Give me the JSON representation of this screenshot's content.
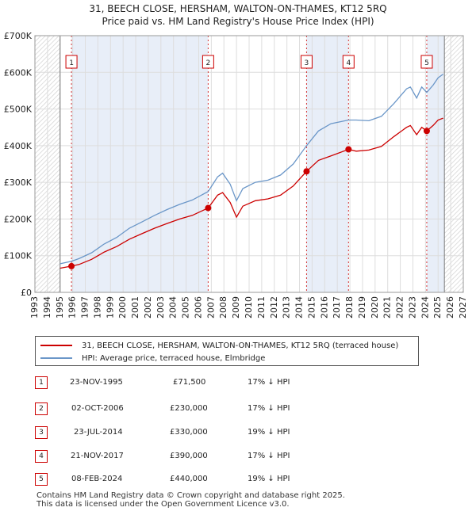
{
  "title": "31, BEECH CLOSE, HERSHAM, WALTON-ON-THAMES, KT12 5RQ",
  "subtitle": "Price paid vs. HM Land Registry's House Price Index (HPI)",
  "colors": {
    "property": "#cc0000",
    "hpi": "#6a96c8",
    "sale_marker": "#cc0000",
    "shade": "#e8eef8",
    "future_hatch": "#d4d4d4"
  },
  "chart_data": {
    "type": "line",
    "xlim": [
      1993,
      2027
    ],
    "ylim": [
      0,
      700000
    ],
    "yticks": [
      0,
      100000,
      200000,
      300000,
      400000,
      500000,
      600000,
      700000
    ],
    "ytick_labels": [
      "£0",
      "£100K",
      "£200K",
      "£300K",
      "£400K",
      "£500K",
      "£600K",
      "£700K"
    ],
    "xticks": [
      "1993",
      "1994",
      "1995",
      "1996",
      "1997",
      "1998",
      "1999",
      "2000",
      "2001",
      "2002",
      "2003",
      "2004",
      "2005",
      "2006",
      "2007",
      "2008",
      "2009",
      "2010",
      "2011",
      "2012",
      "2013",
      "2014",
      "2015",
      "2016",
      "2017",
      "2018",
      "2019",
      "2020",
      "2021",
      "2022",
      "2023",
      "2024",
      "2025",
      "2026",
      "2027"
    ],
    "data_start": 1995.0,
    "data_end": 2025.5,
    "series": [
      {
        "name": "31, BEECH CLOSE, HERSHAM, WALTON-ON-THAMES, KT12 5RQ (terraced house)",
        "x": [
          1995.0,
          1995.9,
          1996.5,
          1997.5,
          1998.5,
          1999.5,
          2000.5,
          2001.5,
          2002.5,
          2003.5,
          2004.5,
          2005.5,
          2006.75,
          2007.5,
          2007.9,
          2008.5,
          2009.0,
          2009.5,
          2010.5,
          2011.5,
          2012.5,
          2013.5,
          2014.56,
          2015.5,
          2016.5,
          2017.89,
          2018.5,
          2019.5,
          2020.5,
          2021.5,
          2022.5,
          2022.8,
          2023.3,
          2023.7,
          2024.1,
          2024.6,
          2025.0,
          2025.4
        ],
        "values": [
          66000,
          71500,
          76000,
          90000,
          110000,
          125000,
          145000,
          160000,
          175000,
          188000,
          200000,
          210000,
          230000,
          265000,
          272000,
          245000,
          205000,
          235000,
          250000,
          255000,
          265000,
          290000,
          330000,
          360000,
          372000,
          390000,
          385000,
          388000,
          398000,
          425000,
          450000,
          455000,
          430000,
          450000,
          440000,
          455000,
          470000,
          475000
        ]
      },
      {
        "name": "HPI: Average price, terraced house, Elmbridge",
        "x": [
          1995.0,
          1995.9,
          1996.5,
          1997.5,
          1998.5,
          1999.5,
          2000.5,
          2001.5,
          2002.5,
          2003.5,
          2004.5,
          2005.5,
          2006.75,
          2007.5,
          2007.9,
          2008.5,
          2009.0,
          2009.5,
          2010.5,
          2011.5,
          2012.5,
          2013.5,
          2014.56,
          2015.5,
          2016.5,
          2017.89,
          2018.5,
          2019.5,
          2020.5,
          2021.5,
          2022.5,
          2022.8,
          2023.3,
          2023.7,
          2024.1,
          2024.6,
          2025.0,
          2025.4
        ],
        "values": [
          78000,
          85000,
          92000,
          108000,
          132000,
          150000,
          175000,
          192000,
          210000,
          226000,
          240000,
          252000,
          275000,
          315000,
          325000,
          295000,
          250000,
          283000,
          300000,
          306000,
          320000,
          350000,
          400000,
          440000,
          460000,
          470000,
          470000,
          468000,
          480000,
          515000,
          555000,
          560000,
          530000,
          560000,
          545000,
          565000,
          585000,
          595000
        ]
      }
    ],
    "sales": [
      {
        "n": "1",
        "x": 1995.9,
        "value": 71500
      },
      {
        "n": "2",
        "x": 2006.75,
        "value": 230000
      },
      {
        "n": "3",
        "x": 2014.56,
        "value": 330000
      },
      {
        "n": "4",
        "x": 2017.89,
        "value": 390000
      },
      {
        "n": "5",
        "x": 2024.1,
        "value": 440000
      }
    ]
  },
  "legend": {
    "property": "31, BEECH CLOSE, HERSHAM, WALTON-ON-THAMES, KT12 5RQ (terraced house)",
    "hpi": "HPI: Average price, terraced house, Elmbridge"
  },
  "table": [
    {
      "n": "1",
      "date": "23-NOV-1995",
      "price": "£71,500",
      "hpi": "17% ↓ HPI"
    },
    {
      "n": "2",
      "date": "02-OCT-2006",
      "price": "£230,000",
      "hpi": "17% ↓ HPI"
    },
    {
      "n": "3",
      "date": "23-JUL-2014",
      "price": "£330,000",
      "hpi": "19% ↓ HPI"
    },
    {
      "n": "4",
      "date": "21-NOV-2017",
      "price": "£390,000",
      "hpi": "17% ↓ HPI"
    },
    {
      "n": "5",
      "date": "08-FEB-2024",
      "price": "£440,000",
      "hpi": "19% ↓ HPI"
    }
  ],
  "footer": {
    "line1": "Contains HM Land Registry data © Crown copyright and database right 2025.",
    "line2": "This data is licensed under the Open Government Licence v3.0."
  }
}
